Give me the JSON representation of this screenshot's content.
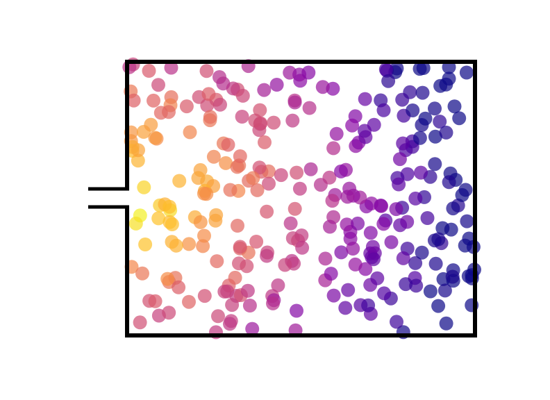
{
  "diagram": {
    "colormap": "plasma",
    "background": "#ffffff",
    "wall_color": "#000000",
    "particle_count": 300,
    "particle_opacity": 0.7
  }
}
